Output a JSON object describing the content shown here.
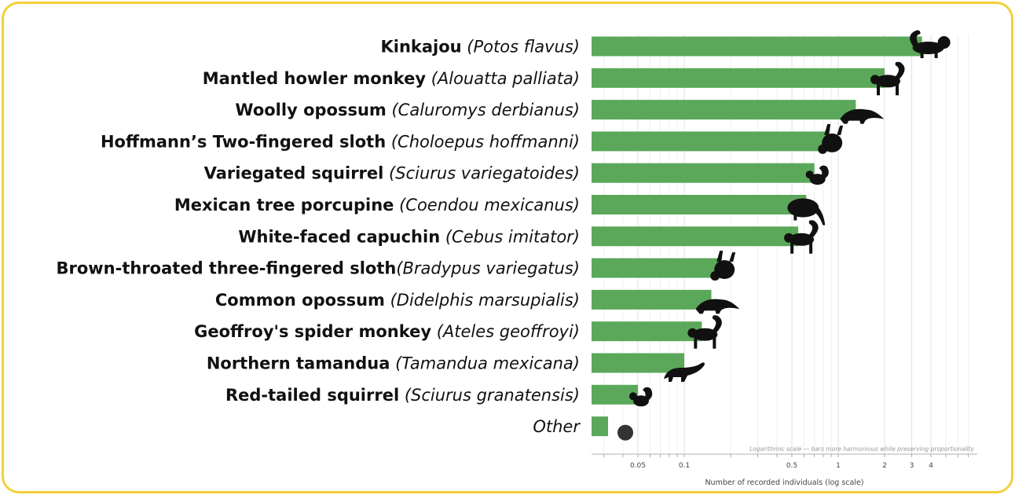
{
  "chart_data": {
    "type": "bar",
    "orientation": "horizontal",
    "xscale": "log",
    "xlim": [
      0.025,
      8
    ],
    "xlabel": "Number of recorded individuals  (log scale)",
    "note": "Logarithmic scale — bars more harmonious while preserving proportionality",
    "xticks": [
      "0.05",
      "0.1",
      "0.5",
      "1",
      "2",
      "3",
      "4"
    ],
    "bar_color": "#5ba85a",
    "grid": true,
    "categories": [
      {
        "common": "Kinkajou",
        "latin": "(Potos flavus)",
        "value": 3.5,
        "icon": "kinkajou-icon"
      },
      {
        "common": "Mantled howler monkey",
        "latin": "(Alouatta palliata)",
        "value": 2.0,
        "icon": "howler-monkey-icon"
      },
      {
        "common": "Woolly opossum",
        "latin": "(Caluromys derbianus)",
        "value": 1.3,
        "icon": "woolly-opossum-icon"
      },
      {
        "common": "Hoffmann’s Two-fingered sloth",
        "latin": "(Choloepus hoffmanni)",
        "value": 0.85,
        "icon": "sloth-icon"
      },
      {
        "common": "Variegated squirrel",
        "latin": "(Sciurus variegatoides)",
        "value": 0.7,
        "icon": "squirrel-icon"
      },
      {
        "common": "Mexican tree porcupine",
        "latin": "(Coendou mexicanus)",
        "value": 0.62,
        "icon": "porcupine-icon"
      },
      {
        "common": "White-faced capuchin",
        "latin": "(Cebus imitator)",
        "value": 0.55,
        "icon": "capuchin-icon"
      },
      {
        "common": "Brown-throated three-fingered sloth",
        "latin": "(Bradypus variegatus)",
        "value": 0.17,
        "icon": "sloth-icon"
      },
      {
        "common": "Common opossum",
        "latin": "(Didelphis marsupialis)",
        "value": 0.15,
        "icon": "opossum-icon"
      },
      {
        "common": "Geoffroy's spider monkey",
        "latin": "(Ateles geoffroyi)",
        "value": 0.13,
        "icon": "spider-monkey-icon"
      },
      {
        "common": "Northern tamandua",
        "latin": "(Tamandua mexicana)",
        "value": 0.1,
        "icon": "tamandua-icon"
      },
      {
        "common": "Red-tailed squirrel",
        "latin": "(Sciurus granatensis)",
        "value": 0.05,
        "icon": "squirrel-icon"
      },
      {
        "common": "",
        "latin": "Other",
        "value": 0.032,
        "icon": "dot-icon"
      }
    ]
  }
}
